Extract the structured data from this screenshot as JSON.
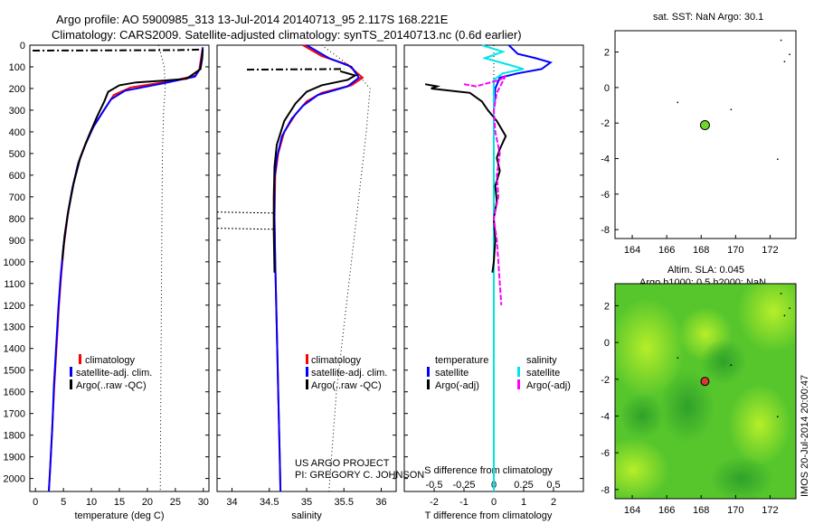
{
  "titles": {
    "line1": "Argo profile: AO 5900985_313 13-Jul-2014 20140713_95 2.117S 168.221E",
    "line2": "Climatology: CARS2009. Satellite-adjusted climatology: synTS_20140713.nc (0.6d earlier)"
  },
  "credits": {
    "line1": "US ARGO PROJECT",
    "line2": "PI: GREGORY C. JOHNSON"
  },
  "side_label": "IMOS 20-Jul-2014 20:00:47",
  "colors": {
    "climatology": "#ff0000",
    "satellite": "#0000ff",
    "argo": "#000000",
    "sal_satellite": "#00e5e5",
    "sal_argo": "#ff00ff",
    "float_marker": "#6fd62a",
    "float_marker_sla": "#d23c2c"
  },
  "chart_data": [
    {
      "type": "line",
      "xlabel": "temperature (deg C)",
      "xticks": [
        0,
        5,
        10,
        15,
        20,
        25,
        30
      ],
      "xlim": [
        -1,
        31
      ],
      "ylim": [
        2060,
        0
      ],
      "yticks": [
        0,
        100,
        200,
        300,
        400,
        500,
        600,
        700,
        800,
        900,
        1000,
        1100,
        1200,
        1300,
        1400,
        1500,
        1600,
        1700,
        1800,
        1900,
        2000
      ],
      "legend": [
        "climatology",
        "satellite-adj. clim.",
        "Argo(..raw -QC)"
      ],
      "series": [
        {
          "name": "climatology",
          "points": [
            [
              29.9,
              10
            ],
            [
              29.6,
              60
            ],
            [
              29.3,
              110
            ],
            [
              28.6,
              140
            ],
            [
              24.5,
              165
            ],
            [
              17,
              195
            ],
            [
              14,
              230
            ],
            [
              12.5,
              290
            ],
            [
              10.5,
              370
            ],
            [
              9,
              450
            ],
            [
              7.7,
              540
            ],
            [
              6.7,
              650
            ],
            [
              5.8,
              780
            ],
            [
              5.1,
              920
            ],
            [
              4.6,
              1060
            ],
            [
              4.2,
              1200
            ],
            [
              3.8,
              1380
            ],
            [
              3.4,
              1560
            ],
            [
              3.0,
              1760
            ],
            [
              2.6,
              1960
            ],
            [
              2.4,
              2060
            ]
          ]
        },
        {
          "name": "satellite-adj. clim.",
          "points": [
            [
              29.9,
              10
            ],
            [
              29.7,
              60
            ],
            [
              29.4,
              110
            ],
            [
              28.5,
              145
            ],
            [
              23,
              175
            ],
            [
              16,
              210
            ],
            [
              13.5,
              250
            ],
            [
              12,
              310
            ],
            [
              10.3,
              380
            ],
            [
              8.9,
              460
            ],
            [
              7.6,
              550
            ],
            [
              6.6,
              660
            ],
            [
              5.7,
              790
            ],
            [
              5.0,
              930
            ],
            [
              4.5,
              1070
            ],
            [
              4.1,
              1210
            ],
            [
              3.7,
              1390
            ],
            [
              3.3,
              1570
            ],
            [
              3.0,
              1770
            ],
            [
              2.6,
              1970
            ],
            [
              2.4,
              2060
            ]
          ]
        },
        {
          "name": "Argo(..raw -QC)",
          "points": [
            [
              29.9,
              20
            ],
            [
              29.8,
              60
            ],
            [
              29.5,
              110
            ],
            [
              27,
              155
            ],
            [
              22,
              165
            ],
            [
              18,
              172
            ],
            [
              15,
              185
            ],
            [
              13,
              215
            ],
            [
              12.3,
              260
            ],
            [
              11,
              330
            ],
            [
              9.5,
              420
            ],
            [
              8,
              520
            ],
            [
              6.8,
              640
            ],
            [
              5.9,
              760
            ],
            [
              5.2,
              880
            ],
            [
              4.8,
              990
            ]
          ]
        },
        {
          "name": "raw-near-surface",
          "points": [
            [
              -0.5,
              25
            ],
            [
              25,
              23
            ],
            [
              29.9,
              20
            ]
          ]
        },
        {
          "name": "climatology-std",
          "points": [
            [
              22,
              0
            ],
            [
              23,
              100
            ],
            [
              23.2,
              200
            ],
            [
              22.9,
              300
            ],
            [
              22.7,
              500
            ],
            [
              22.6,
              800
            ],
            [
              22.5,
              1200
            ],
            [
              22.4,
              1600
            ],
            [
              22.3,
              2060
            ]
          ]
        }
      ]
    },
    {
      "type": "line",
      "xlabel": "salinity",
      "xticks": [
        34,
        34.5,
        35,
        35.5,
        36
      ],
      "xlim": [
        33.8,
        36.2
      ],
      "ylim": [
        2060,
        0
      ],
      "legend": [
        "climatology",
        "satellite-adj. clim.",
        "Argo(..raw -QC)"
      ],
      "series": [
        {
          "name": "climatology",
          "points": [
            [
              34.95,
              0
            ],
            [
              35.2,
              50
            ],
            [
              35.55,
              90
            ],
            [
              35.75,
              150
            ],
            [
              35.6,
              185
            ],
            [
              35.2,
              220
            ],
            [
              35.0,
              260
            ],
            [
              34.85,
              320
            ],
            [
              34.7,
              400
            ],
            [
              34.62,
              500
            ],
            [
              34.58,
              600
            ],
            [
              34.57,
              800
            ],
            [
              34.58,
              1000
            ],
            [
              34.6,
              1300
            ],
            [
              34.62,
              1600
            ],
            [
              34.64,
              1900
            ],
            [
              34.65,
              2060
            ]
          ]
        },
        {
          "name": "satellite-adj. clim.",
          "points": [
            [
              35.0,
              0
            ],
            [
              35.3,
              60
            ],
            [
              35.6,
              100
            ],
            [
              35.7,
              150
            ],
            [
              35.55,
              190
            ],
            [
              35.15,
              230
            ],
            [
              34.95,
              280
            ],
            [
              34.8,
              340
            ],
            [
              34.67,
              420
            ],
            [
              34.6,
              520
            ],
            [
              34.57,
              620
            ],
            [
              34.57,
              800
            ],
            [
              34.58,
              1000
            ],
            [
              34.6,
              1300
            ],
            [
              34.62,
              1600
            ],
            [
              34.64,
              1900
            ],
            [
              34.65,
              2060
            ]
          ]
        },
        {
          "name": "Argo(..raw -QC)",
          "points": [
            [
              35.45,
              120
            ],
            [
              35.65,
              140
            ],
            [
              35.55,
              160
            ],
            [
              35.2,
              185
            ],
            [
              35.0,
              215
            ],
            [
              34.85,
              270
            ],
            [
              34.7,
              350
            ],
            [
              34.6,
              460
            ],
            [
              34.57,
              560
            ],
            [
              34.56,
              700
            ],
            [
              34.56,
              860
            ],
            [
              34.57,
              1050
            ]
          ]
        },
        {
          "name": "raw-flagged",
          "points": [
            [
              33.8,
              770
            ],
            [
              34.55,
              775
            ]
          ]
        },
        {
          "name": "raw-flagged-2",
          "points": [
            [
              33.8,
              845
            ],
            [
              34.55,
              850
            ]
          ]
        },
        {
          "name": "raw-flagged-3",
          "points": [
            [
              34.2,
              113
            ],
            [
              35.5,
              110
            ]
          ]
        },
        {
          "name": "climatology-std",
          "points": [
            [
              35.2,
              0
            ],
            [
              35.6,
              100
            ],
            [
              35.85,
              200
            ],
            [
              35.8,
              400
            ],
            [
              35.7,
              700
            ],
            [
              35.6,
              1000
            ],
            [
              35.5,
              1300
            ],
            [
              35.4,
              1600
            ],
            [
              35.3,
              2060
            ]
          ]
        }
      ]
    },
    {
      "type": "line",
      "xlabel_top": "S difference from climatology",
      "xlabel": "T difference from climatology",
      "xticks": [
        -2,
        -1,
        0,
        1,
        2
      ],
      "sticks": [
        "-0.5",
        "-0.25",
        "0",
        "0.25",
        "0.5"
      ],
      "xlim": [
        -3,
        3
      ],
      "ylim": [
        2060,
        0
      ],
      "legend": [
        "temperature",
        "satellite",
        "Argo(-adj)",
        "salinity",
        "satellite",
        "Argo(-adj)"
      ],
      "series": [
        {
          "name": "temperature satellite",
          "points": [
            [
              0.5,
              0
            ],
            [
              0.8,
              40
            ],
            [
              1.4,
              60
            ],
            [
              1.9,
              80
            ],
            [
              1.6,
              110
            ],
            [
              0.8,
              130
            ],
            [
              0.2,
              150
            ],
            [
              0.05,
              200
            ],
            [
              0,
              300
            ],
            [
              0,
              2060
            ]
          ]
        },
        {
          "name": "salinity satellite",
          "points": [
            [
              -0.4,
              0
            ],
            [
              0.3,
              30
            ],
            [
              -0.3,
              60
            ],
            [
              0.5,
              90
            ],
            [
              1.0,
              110
            ],
            [
              0.3,
              130
            ],
            [
              0,
              160
            ],
            [
              0,
              2060
            ]
          ]
        },
        {
          "name": "temperature Argo",
          "points": [
            [
              -2.3,
              180
            ],
            [
              -1.9,
              190
            ],
            [
              -2.1,
              200
            ],
            [
              -0.8,
              220
            ],
            [
              -0.4,
              260
            ],
            [
              -0.2,
              300
            ],
            [
              0.1,
              350
            ],
            [
              0.4,
              420
            ],
            [
              0.2,
              480
            ],
            [
              0.1,
              520
            ],
            [
              0.2,
              580
            ],
            [
              0.05,
              650
            ],
            [
              0.1,
              720
            ],
            [
              0.0,
              800
            ],
            [
              0.05,
              900
            ],
            [
              0.0,
              1000
            ],
            [
              -0.05,
              1050
            ]
          ]
        },
        {
          "name": "salinity Argo",
          "points": [
            [
              -1.0,
              180
            ],
            [
              -0.6,
              190
            ],
            [
              0.2,
              160
            ],
            [
              0.4,
              140
            ],
            [
              0.1,
              220
            ],
            [
              0.0,
              300
            ],
            [
              0.05,
              400
            ],
            [
              0.2,
              500
            ],
            [
              0.1,
              600
            ],
            [
              0.15,
              700
            ],
            [
              0.0,
              800
            ],
            [
              0.1,
              900
            ],
            [
              0.15,
              1000
            ],
            [
              0.2,
              1100
            ],
            [
              0.25,
              1200
            ]
          ]
        }
      ]
    },
    {
      "type": "scatter",
      "title": "sat. SST: NaN Argo: 30.1",
      "xticks": [
        164,
        166,
        168,
        170,
        172
      ],
      "yticks": [
        2,
        0,
        -2,
        -4,
        -6,
        -8
      ],
      "xlim": [
        163,
        173.5
      ],
      "ylim": [
        -8.5,
        3.2
      ],
      "float": {
        "lon": 168.221,
        "lat": -2.117
      }
    },
    {
      "type": "heatmap",
      "title1": "Altim. SLA: 0.045",
      "title2": "Argo h1000: 0.5 h2000: NaN",
      "xticks": [
        164,
        166,
        168,
        170,
        172
      ],
      "yticks": [
        2,
        0,
        -2,
        -4,
        -6,
        -8
      ],
      "xlim": [
        163,
        173.5
      ],
      "ylim": [
        -8.5,
        3.2
      ],
      "float": {
        "lon": 168.221,
        "lat": -2.117
      }
    }
  ]
}
